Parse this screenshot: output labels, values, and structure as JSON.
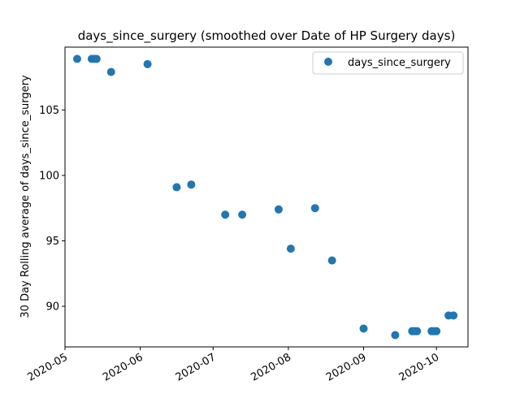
{
  "chart_data": {
    "type": "scatter",
    "title": "days_since_surgery (smoothed over Date of HP Surgery days)",
    "xlabel": "",
    "ylabel": "30 Day Rolling average of days_since_surgery",
    "x_axis_type": "date",
    "xlim": [
      "2020-05-01",
      "2020-10-14"
    ],
    "ylim": [
      86.9,
      109.8
    ],
    "x_ticks": [
      "2020-05-01",
      "2020-06-01",
      "2020-07-01",
      "2020-08-01",
      "2020-09-01",
      "2020-10-01"
    ],
    "x_tick_labels": [
      "2020-05",
      "2020-06",
      "2020-07",
      "2020-08",
      "2020-09",
      "2020-10"
    ],
    "y_ticks": [
      90,
      95,
      100,
      105
    ],
    "y_tick_labels": [
      "90",
      "95",
      "100",
      "105"
    ],
    "grid": false,
    "legend_position": "top-right",
    "series": [
      {
        "name": "days_since_surgery",
        "color": "#1f77b4",
        "marker": "circle",
        "points": [
          {
            "x": "2020-05-06",
            "y": 108.9
          },
          {
            "x": "2020-05-12",
            "y": 108.9
          },
          {
            "x": "2020-05-13",
            "y": 108.9
          },
          {
            "x": "2020-05-14",
            "y": 108.9
          },
          {
            "x": "2020-05-20",
            "y": 107.9
          },
          {
            "x": "2020-06-04",
            "y": 108.5
          },
          {
            "x": "2020-06-16",
            "y": 99.1
          },
          {
            "x": "2020-06-22",
            "y": 99.3
          },
          {
            "x": "2020-07-06",
            "y": 97.0
          },
          {
            "x": "2020-07-13",
            "y": 97.0
          },
          {
            "x": "2020-07-28",
            "y": 97.4
          },
          {
            "x": "2020-08-02",
            "y": 94.4
          },
          {
            "x": "2020-08-12",
            "y": 97.5
          },
          {
            "x": "2020-08-19",
            "y": 93.5
          },
          {
            "x": "2020-09-01",
            "y": 88.3
          },
          {
            "x": "2020-09-14",
            "y": 87.8
          },
          {
            "x": "2020-09-21",
            "y": 88.1
          },
          {
            "x": "2020-09-22",
            "y": 88.1
          },
          {
            "x": "2020-09-23",
            "y": 88.1
          },
          {
            "x": "2020-09-29",
            "y": 88.1
          },
          {
            "x": "2020-09-30",
            "y": 88.1
          },
          {
            "x": "2020-10-01",
            "y": 88.1
          },
          {
            "x": "2020-10-06",
            "y": 89.3
          },
          {
            "x": "2020-10-08",
            "y": 89.3
          }
        ]
      }
    ]
  }
}
